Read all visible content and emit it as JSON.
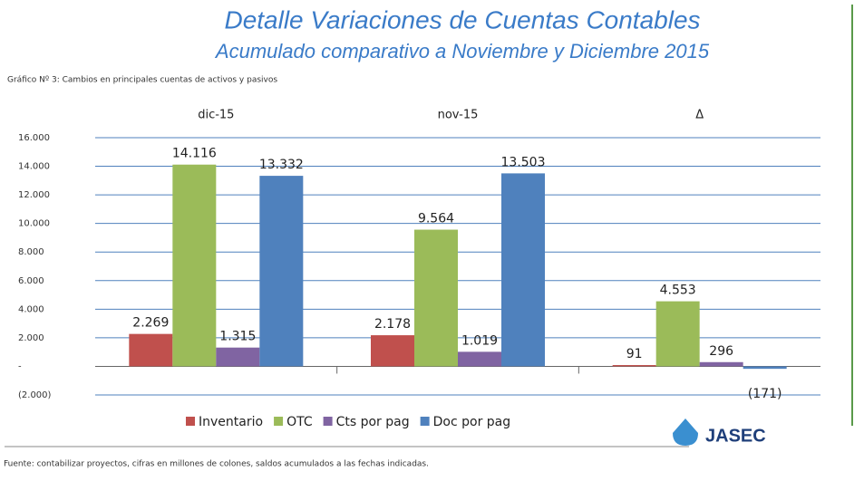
{
  "chart_data": {
    "type": "bar",
    "title": "Detalle  Variaciones de Cuentas Contables",
    "subtitle": "Acumulado comparativo a Noviembre y Diciembre 2015",
    "caption": "Gráfico Nº 3: Cambios en principales cuentas de activos y pasivos",
    "footer": "Fuente: contabilizar proyectos, cifras en millones de colones, saldos acumulados a las fechas indicadas.",
    "logo": "JASEC",
    "categories": [
      "dic-15",
      "nov-15",
      "Δ"
    ],
    "series": [
      {
        "name": "Inventario",
        "color": "#c0504d",
        "values": [
          2269,
          2178,
          91
        ],
        "value_labels": [
          "2.269",
          "2.178",
          "91"
        ]
      },
      {
        "name": "OTC",
        "color": "#9bbb59",
        "values": [
          14116,
          9564,
          4553
        ],
        "value_labels": [
          "14.116",
          "9.564",
          "4.553"
        ]
      },
      {
        "name": "Cts por pag",
        "color": "#8064a2",
        "values": [
          1315,
          1019,
          296
        ],
        "value_labels": [
          "1.315",
          "1.019",
          "296"
        ]
      },
      {
        "name": "Doc por pag",
        "color": "#4f81bd",
        "values": [
          13332,
          13503,
          -171
        ],
        "value_labels": [
          "13.332",
          "13.503",
          "(171)"
        ]
      }
    ],
    "ylim": [
      -2000,
      16000
    ],
    "yticks": [
      {
        "value": -2000,
        "label": "(2.000)"
      },
      {
        "value": 0,
        "label": "-"
      },
      {
        "value": 2000,
        "label": "2.000"
      },
      {
        "value": 4000,
        "label": "4.000"
      },
      {
        "value": 6000,
        "label": "6.000"
      },
      {
        "value": 8000,
        "label": "8.000"
      },
      {
        "value": 10000,
        "label": "10.000"
      },
      {
        "value": 12000,
        "label": "12.000"
      },
      {
        "value": 14000,
        "label": "14.000"
      },
      {
        "value": 16000,
        "label": "16.000"
      }
    ],
    "grid": true,
    "legend": "bottom"
  }
}
